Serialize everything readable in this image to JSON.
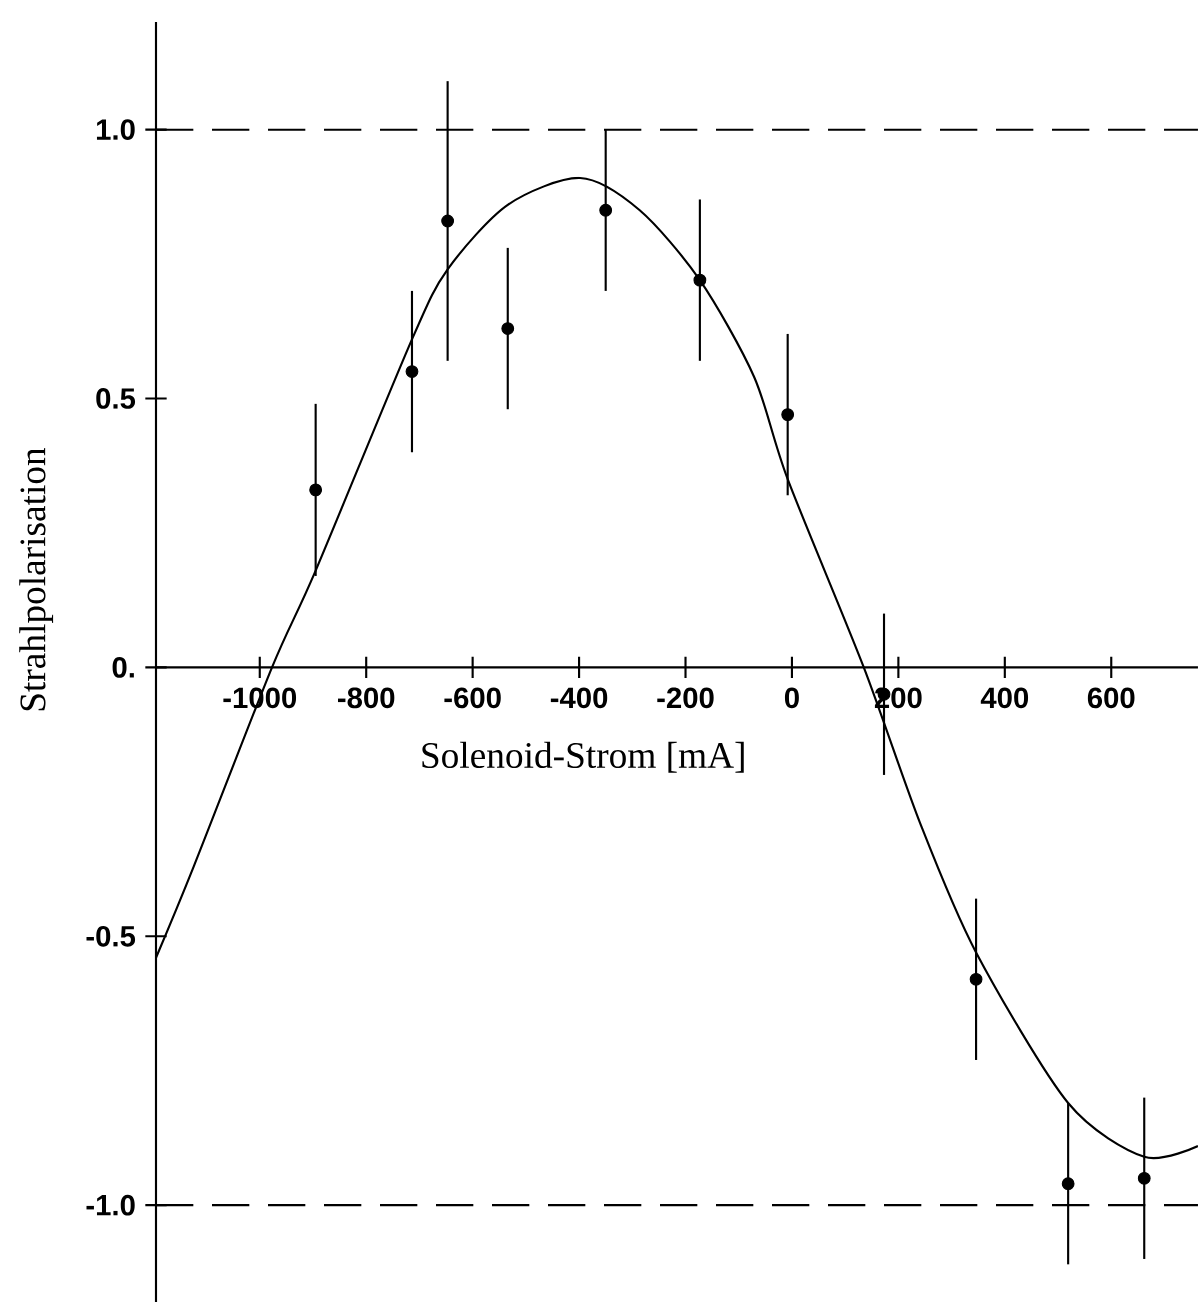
{
  "chart_data": {
    "type": "scatter",
    "xlabel": "Solenoid-Strom [mA]",
    "ylabel": "Strahlpolarisation",
    "xlim": [
      -1195,
      763
    ],
    "ylim": [
      -1.18,
      1.2
    ],
    "xticks": [
      -1000,
      -800,
      -600,
      -400,
      -200,
      0,
      200,
      400,
      600
    ],
    "yticks": [
      {
        "value": -1.0,
        "label": "-1.0"
      },
      {
        "value": -0.5,
        "label": "-0.5"
      },
      {
        "value": 0,
        "label": "0."
      },
      {
        "value": 0.5,
        "label": "0.5"
      },
      {
        "value": 1.0,
        "label": "1.0"
      }
    ],
    "grid": false,
    "ref_lines": [
      {
        "axis": "y",
        "value": 1.0,
        "line_style": "dashed"
      },
      {
        "axis": "y",
        "value": -1.0,
        "line_style": "dashed"
      }
    ],
    "series": [
      {
        "type": "scatter",
        "color": "#000000",
        "marker": "circle",
        "x": [
          -895,
          -714,
          -647,
          -534,
          -350,
          -173,
          -8,
          173,
          346,
          519,
          662
        ],
        "values": [
          0.33,
          0.55,
          0.83,
          0.63,
          0.85,
          0.72,
          0.47,
          -0.05,
          -0.58,
          -0.96,
          -0.95
        ],
        "errors": [
          0.16,
          0.15,
          0.26,
          0.15,
          0.15,
          0.15,
          0.15,
          0.15,
          0.15,
          0.15,
          0.15
        ]
      },
      {
        "type": "line",
        "color": "#000000",
        "marker": "none",
        "x": [
          -1195,
          -1124,
          -977,
          -895,
          -714,
          -647,
          -534,
          -398,
          -286,
          -173,
          -71,
          -8,
          135,
          241,
          346,
          519,
          662,
          763
        ],
        "values": [
          -0.54,
          -0.37,
          0,
          0.18,
          0.61,
          0.74,
          0.86,
          0.91,
          0.85,
          0.72,
          0.54,
          0.35,
          0,
          -0.29,
          -0.53,
          -0.81,
          -0.91,
          -0.89
        ]
      }
    ]
  }
}
